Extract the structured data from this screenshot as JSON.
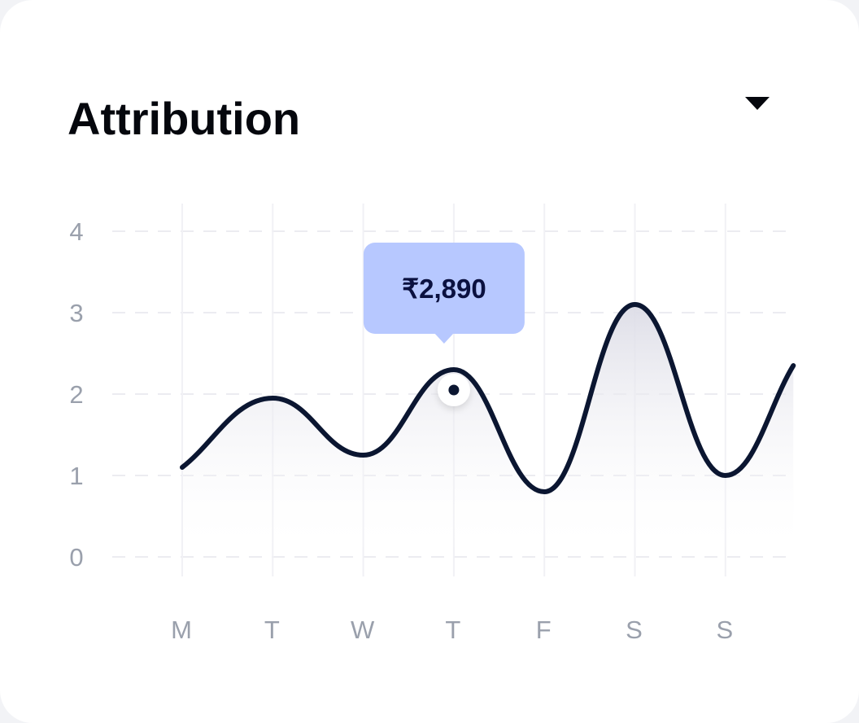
{
  "card": {
    "title": "Attribution"
  },
  "dropdown": {
    "icon": "caret-down-icon"
  },
  "colors": {
    "line": "#0b1631",
    "tooltip_bg": "#b7c8ff",
    "tooltip_text": "#0b1140",
    "tick": "#9aa0ac",
    "grid": "#ececf1"
  },
  "tooltip": {
    "label": "₹2,890",
    "category_index": 3
  },
  "chart_data": {
    "type": "area",
    "categories": [
      "M",
      "T",
      "W",
      "T",
      "F",
      "S",
      "S"
    ],
    "ylim": [
      0,
      4
    ],
    "yticks": [
      0,
      1,
      2,
      3,
      4
    ],
    "grid": true,
    "series": [
      {
        "points": [
          {
            "x": 0,
            "y": 1.1
          },
          {
            "x": 1,
            "y": 1.95
          },
          {
            "x": 2,
            "y": 1.25
          },
          {
            "x": 3,
            "y": 2.3
          },
          {
            "x": 4,
            "y": 0.8
          },
          {
            "x": 5,
            "y": 3.1
          },
          {
            "x": 6,
            "y": 1.0
          },
          {
            "x": 6.75,
            "y": 2.35
          }
        ]
      }
    ]
  }
}
